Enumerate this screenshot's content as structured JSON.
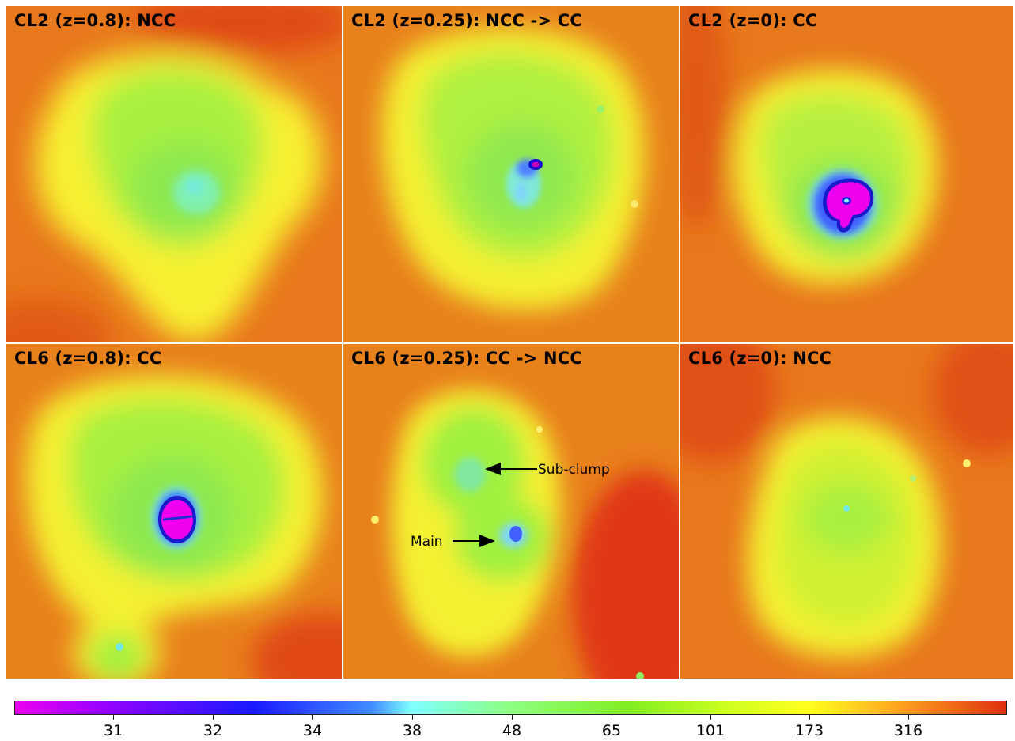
{
  "panels": [
    {
      "title": "CL2 (z=0.8): NCC"
    },
    {
      "title": "CL2 (z=0.25): NCC -> CC"
    },
    {
      "title": "CL2 (z=0): CC"
    },
    {
      "title": "CL6 (z=0.8): CC"
    },
    {
      "title": "CL6 (z=0.25): CC -> NCC"
    },
    {
      "title": "CL6 (z=0): NCC"
    }
  ],
  "annotations": {
    "subclump": "Sub-clump",
    "main": "Main"
  },
  "colorbar": {
    "ticks": [
      "31",
      "32",
      "34",
      "38",
      "48",
      "65",
      "101",
      "173",
      "316"
    ],
    "colors": [
      "#ee00ee",
      "#a000ff",
      "#1a1aff",
      "#80ffff",
      "#8cff80",
      "#cfff20",
      "#ffff20",
      "#ffb020",
      "#e03010"
    ]
  }
}
